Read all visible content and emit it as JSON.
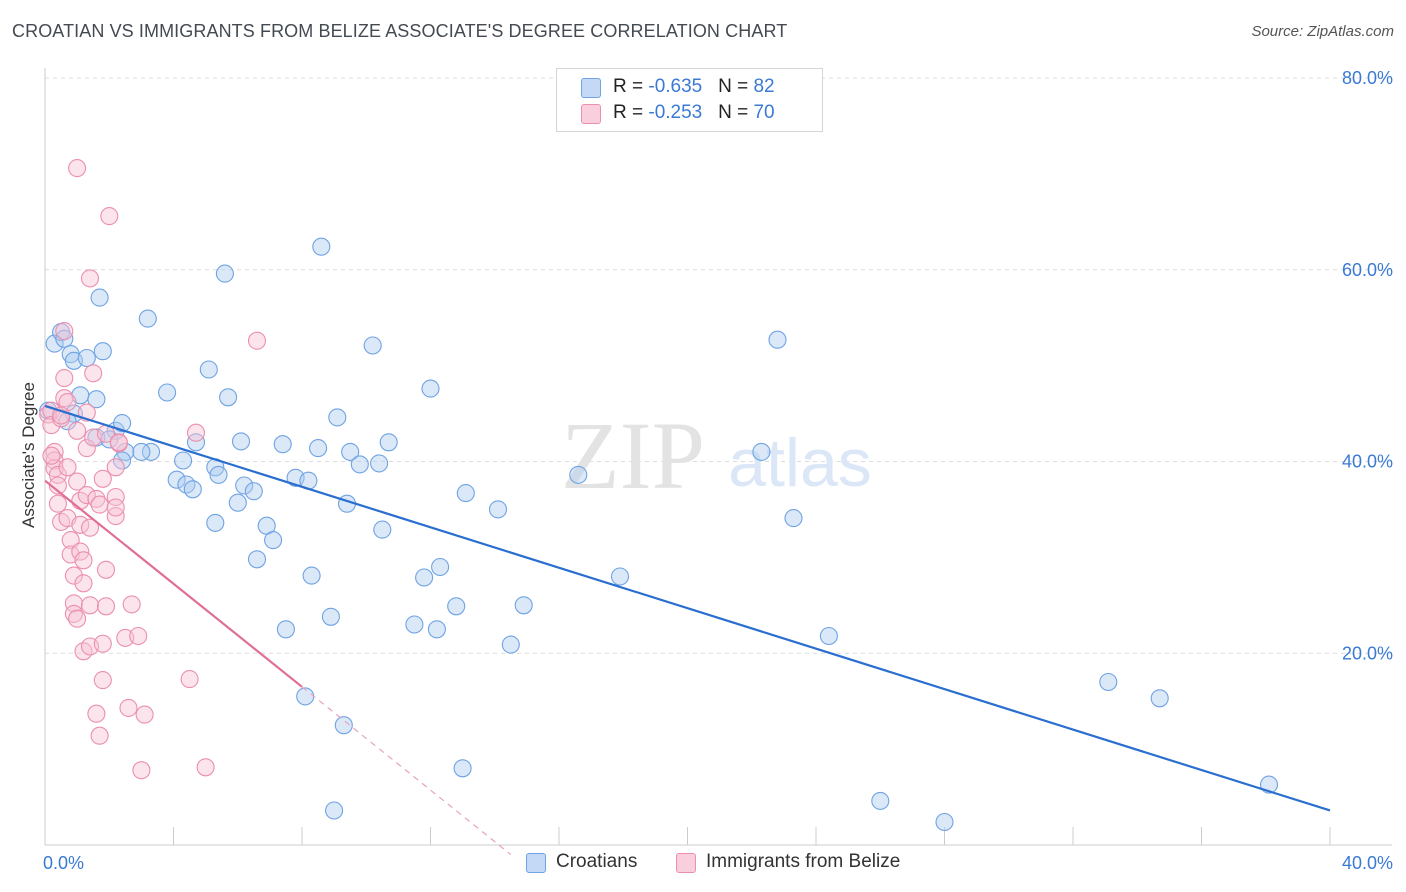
{
  "title": "CROATIAN VS IMMIGRANTS FROM BELIZE ASSOCIATE'S DEGREE CORRELATION CHART",
  "source": "Source: ZipAtlas.com",
  "watermark": {
    "zip": "ZIP",
    "atlas": "atlas"
  },
  "legend": {
    "rows": [
      {
        "r_label": "R = ",
        "r_value": "-0.635",
        "n_label": "N = ",
        "n_value": "82",
        "color": "#9fc3ee"
      },
      {
        "r_label": "R = ",
        "r_value": "-0.253",
        "n_label": "N = ",
        "n_value": "70",
        "color": "#f5b3c8"
      }
    ]
  },
  "bottom_legend": [
    {
      "label": "Croatians",
      "color": "#9fc3ee"
    },
    {
      "label": "Immigrants from Belize",
      "color": "#f5b3c8"
    }
  ],
  "chart_data": {
    "type": "scatter",
    "title": "CROATIAN VS IMMIGRANTS FROM BELIZE ASSOCIATE'S DEGREE CORRELATION CHART",
    "xlabel": "",
    "ylabel": "Associate's Degree",
    "xlim": [
      0,
      40
    ],
    "ylim": [
      0,
      80
    ],
    "x_tick_labels": [
      "0.0%",
      "40.0%"
    ],
    "y_ticks": [
      20,
      40,
      60,
      80
    ],
    "y_tick_labels": [
      "20.0%",
      "40.0%",
      "60.0%",
      "80.0%"
    ],
    "grid": "horizontal dashed",
    "series": [
      {
        "name": "Croatians",
        "color": "#6fa3e3",
        "fill": "#aecbf0",
        "trend": {
          "x": [
            0,
            40
          ],
          "y": [
            45.8,
            3.6
          ],
          "color": "#2a6fd0"
        },
        "points": [
          [
            0.3,
            52.3
          ],
          [
            0.5,
            53.5
          ],
          [
            0.6,
            52.8
          ],
          [
            0.8,
            51.2
          ],
          [
            0.9,
            50.5
          ],
          [
            0.9,
            45.0
          ],
          [
            1.3,
            50.8
          ],
          [
            1.1,
            46.9
          ],
          [
            1.6,
            46.5
          ],
          [
            1.7,
            57.1
          ],
          [
            1.8,
            51.5
          ],
          [
            2.2,
            43.2
          ],
          [
            2.4,
            44.0
          ],
          [
            1.6,
            42.5
          ],
          [
            2.5,
            41.0
          ],
          [
            2.4,
            40.1
          ],
          [
            3.2,
            54.9
          ],
          [
            3.3,
            41.0
          ],
          [
            3.0,
            41.0
          ],
          [
            3.8,
            47.2
          ],
          [
            4.3,
            40.1
          ],
          [
            4.1,
            38.1
          ],
          [
            4.4,
            37.6
          ],
          [
            4.6,
            37.1
          ],
          [
            4.7,
            42.0
          ],
          [
            5.1,
            49.6
          ],
          [
            5.3,
            39.4
          ],
          [
            5.4,
            38.6
          ],
          [
            5.7,
            46.7
          ],
          [
            5.3,
            33.6
          ],
          [
            5.6,
            59.6
          ],
          [
            6.0,
            35.7
          ],
          [
            6.1,
            42.1
          ],
          [
            6.2,
            37.5
          ],
          [
            6.5,
            36.9
          ],
          [
            6.6,
            29.8
          ],
          [
            6.9,
            33.3
          ],
          [
            7.1,
            31.8
          ],
          [
            7.4,
            41.8
          ],
          [
            7.5,
            22.5
          ],
          [
            7.8,
            38.3
          ],
          [
            8.2,
            38.0
          ],
          [
            8.3,
            28.1
          ],
          [
            8.5,
            41.4
          ],
          [
            8.6,
            62.4
          ],
          [
            8.9,
            23.8
          ],
          [
            9.1,
            44.6
          ],
          [
            9.4,
            35.6
          ],
          [
            9.5,
            41.0
          ],
          [
            9.8,
            39.7
          ],
          [
            10.2,
            52.1
          ],
          [
            10.4,
            39.8
          ],
          [
            10.5,
            32.9
          ],
          [
            10.7,
            42.0
          ],
          [
            12.0,
            47.6
          ],
          [
            11.5,
            23.0
          ],
          [
            11.8,
            27.9
          ],
          [
            12.2,
            22.5
          ],
          [
            12.3,
            29.0
          ],
          [
            12.8,
            24.9
          ],
          [
            13.1,
            36.7
          ],
          [
            14.1,
            35.0
          ],
          [
            14.5,
            20.9
          ],
          [
            14.9,
            25.0
          ],
          [
            16.6,
            38.6
          ],
          [
            17.9,
            28.0
          ],
          [
            22.8,
            52.7
          ],
          [
            22.3,
            41.0
          ],
          [
            23.3,
            34.1
          ],
          [
            24.4,
            21.8
          ],
          [
            8.1,
            15.5
          ],
          [
            9.3,
            12.5
          ],
          [
            13.0,
            8.0
          ],
          [
            26.0,
            4.6
          ],
          [
            28.0,
            2.4
          ],
          [
            33.1,
            17.0
          ],
          [
            34.7,
            15.3
          ],
          [
            38.1,
            6.3
          ],
          [
            0.1,
            45.3
          ],
          [
            9.0,
            3.6
          ],
          [
            2.0,
            42.3
          ],
          [
            0.7,
            44.2
          ]
        ]
      },
      {
        "name": "Immigrants from Belize",
        "color": "#ec8fae",
        "fill": "#f7c4d5",
        "trend": {
          "x": [
            0,
            8.0
          ],
          "y": [
            38.0,
            16.5
          ],
          "color": "#e06f98"
        },
        "trend_dashed": {
          "x": [
            8.0,
            14.5
          ],
          "y": [
            16.5,
            -1.0
          ],
          "color": "#e8a3bb"
        },
        "points": [
          [
            0.1,
            44.9
          ],
          [
            0.2,
            45.3
          ],
          [
            0.2,
            43.8
          ],
          [
            0.3,
            41.0
          ],
          [
            0.3,
            40.1
          ],
          [
            0.3,
            39.3
          ],
          [
            0.4,
            38.6
          ],
          [
            0.4,
            37.5
          ],
          [
            0.4,
            35.6
          ],
          [
            0.5,
            33.7
          ],
          [
            0.5,
            44.5
          ],
          [
            0.6,
            48.7
          ],
          [
            0.6,
            53.6
          ],
          [
            0.6,
            46.6
          ],
          [
            0.7,
            46.2
          ],
          [
            0.7,
            39.4
          ],
          [
            0.7,
            34.1
          ],
          [
            0.8,
            31.8
          ],
          [
            0.8,
            30.3
          ],
          [
            0.9,
            28.1
          ],
          [
            0.9,
            25.2
          ],
          [
            0.9,
            24.1
          ],
          [
            1.0,
            23.6
          ],
          [
            1.0,
            43.2
          ],
          [
            1.0,
            37.9
          ],
          [
            1.1,
            35.9
          ],
          [
            1.1,
            33.4
          ],
          [
            1.1,
            30.6
          ],
          [
            1.2,
            29.7
          ],
          [
            1.2,
            27.3
          ],
          [
            1.2,
            20.2
          ],
          [
            1.3,
            45.1
          ],
          [
            1.3,
            41.4
          ],
          [
            1.3,
            36.5
          ],
          [
            1.4,
            33.1
          ],
          [
            1.4,
            25.0
          ],
          [
            1.4,
            20.7
          ],
          [
            1.5,
            49.2
          ],
          [
            1.5,
            42.5
          ],
          [
            1.6,
            36.1
          ],
          [
            1.6,
            13.7
          ],
          [
            1.7,
            35.5
          ],
          [
            1.7,
            11.4
          ],
          [
            1.8,
            38.2
          ],
          [
            1.8,
            21.0
          ],
          [
            1.8,
            17.2
          ],
          [
            1.9,
            42.9
          ],
          [
            1.9,
            28.7
          ],
          [
            1.9,
            24.9
          ],
          [
            2.0,
            65.6
          ],
          [
            2.2,
            34.3
          ],
          [
            2.2,
            39.4
          ],
          [
            2.3,
            41.9
          ],
          [
            2.3,
            42.0
          ],
          [
            2.2,
            36.3
          ],
          [
            2.2,
            35.2
          ],
          [
            2.5,
            21.6
          ],
          [
            2.6,
            14.3
          ],
          [
            2.7,
            25.1
          ],
          [
            2.9,
            21.8
          ],
          [
            3.0,
            7.8
          ],
          [
            3.1,
            13.6
          ],
          [
            4.5,
            17.3
          ],
          [
            4.7,
            43.0
          ],
          [
            5.0,
            8.1
          ],
          [
            6.6,
            52.6
          ],
          [
            1.0,
            70.6
          ],
          [
            1.4,
            59.1
          ],
          [
            0.2,
            40.6
          ],
          [
            0.5,
            44.8
          ]
        ]
      }
    ]
  }
}
